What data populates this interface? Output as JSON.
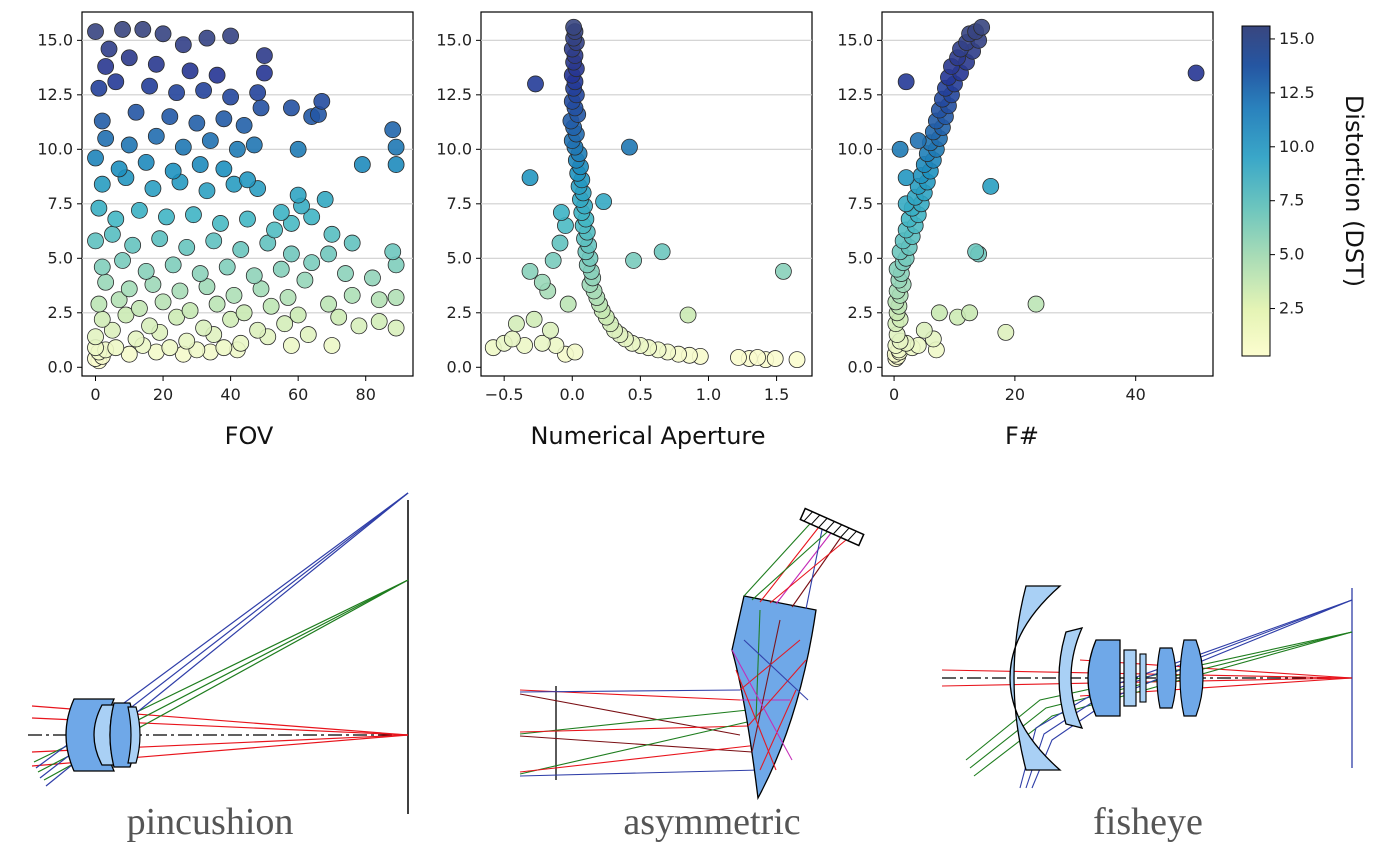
{
  "chart_data": [
    {
      "type": "scatter",
      "xlabel": "FOV",
      "x_ticks": [
        "0",
        "20",
        "40",
        "60",
        "80"
      ],
      "y_ticks": [
        "0.0",
        "2.5",
        "5.0",
        "7.5",
        "10.0",
        "12.5",
        "15.0"
      ],
      "xlim": [
        -4,
        94
      ],
      "ylim": [
        -0.4,
        16.3
      ],
      "grid": "horizontal",
      "color_by": "Distortion (DST)",
      "points": [
        [
          0,
          15.4
        ],
        [
          4,
          14.6
        ],
        [
          8,
          15.5
        ],
        [
          14,
          15.5
        ],
        [
          20,
          15.3
        ],
        [
          26,
          14.8
        ],
        [
          33,
          15.1
        ],
        [
          40,
          15.2
        ],
        [
          50,
          14.3
        ],
        [
          3,
          13.8
        ],
        [
          10,
          14.2
        ],
        [
          18,
          13.9
        ],
        [
          28,
          13.6
        ],
        [
          36,
          13.4
        ],
        [
          50,
          13.5
        ],
        [
          1,
          12.8
        ],
        [
          6,
          13.1
        ],
        [
          16,
          12.9
        ],
        [
          24,
          12.6
        ],
        [
          32,
          12.7
        ],
        [
          40,
          12.4
        ],
        [
          48,
          12.6
        ],
        [
          58,
          11.9
        ],
        [
          64,
          11.5
        ],
        [
          67,
          12.2
        ],
        [
          66,
          11.6
        ],
        [
          49,
          11.9
        ],
        [
          2,
          11.3
        ],
        [
          12,
          11.7
        ],
        [
          22,
          11.5
        ],
        [
          30,
          11.2
        ],
        [
          38,
          11.4
        ],
        [
          44,
          11.1
        ],
        [
          88,
          10.9
        ],
        [
          89,
          10.1
        ],
        [
          47,
          10.2
        ],
        [
          60,
          10.0
        ],
        [
          3,
          10.5
        ],
        [
          10,
          10.2
        ],
        [
          18,
          10.6
        ],
        [
          26,
          10.1
        ],
        [
          34,
          10.4
        ],
        [
          42,
          10.0
        ],
        [
          79,
          9.3
        ],
        [
          89,
          9.3
        ],
        [
          0,
          9.6
        ],
        [
          7,
          9.1
        ],
        [
          15,
          9.4
        ],
        [
          23,
          9.0
        ],
        [
          31,
          9.3
        ],
        [
          38,
          9.1
        ],
        [
          45,
          8.6
        ],
        [
          2,
          8.4
        ],
        [
          9,
          8.7
        ],
        [
          17,
          8.2
        ],
        [
          25,
          8.5
        ],
        [
          33,
          8.1
        ],
        [
          41,
          8.4
        ],
        [
          48,
          8.2
        ],
        [
          60,
          7.9
        ],
        [
          61,
          7.4
        ],
        [
          68,
          7.7
        ],
        [
          55,
          7.1
        ],
        [
          1,
          7.3
        ],
        [
          6,
          6.8
        ],
        [
          13,
          7.2
        ],
        [
          21,
          6.9
        ],
        [
          29,
          7.0
        ],
        [
          37,
          6.6
        ],
        [
          45,
          6.8
        ],
        [
          53,
          6.3
        ],
        [
          58,
          6.6
        ],
        [
          64,
          6.9
        ],
        [
          70,
          6.1
        ],
        [
          76,
          5.7
        ],
        [
          88,
          5.3
        ],
        [
          89,
          4.7
        ],
        [
          0,
          5.8
        ],
        [
          5,
          6.1
        ],
        [
          11,
          5.6
        ],
        [
          19,
          5.9
        ],
        [
          27,
          5.5
        ],
        [
          35,
          5.8
        ],
        [
          43,
          5.4
        ],
        [
          51,
          5.7
        ],
        [
          58,
          5.2
        ],
        [
          64,
          4.8
        ],
        [
          69,
          5.2
        ],
        [
          74,
          4.3
        ],
        [
          82,
          4.1
        ],
        [
          2,
          4.6
        ],
        [
          8,
          4.9
        ],
        [
          15,
          4.4
        ],
        [
          23,
          4.7
        ],
        [
          31,
          4.3
        ],
        [
          39,
          4.6
        ],
        [
          47,
          4.2
        ],
        [
          55,
          4.5
        ],
        [
          62,
          4.0
        ],
        [
          3,
          3.9
        ],
        [
          10,
          3.6
        ],
        [
          17,
          3.8
        ],
        [
          25,
          3.5
        ],
        [
          33,
          3.7
        ],
        [
          41,
          3.3
        ],
        [
          49,
          3.6
        ],
        [
          57,
          3.2
        ],
        [
          69,
          2.9
        ],
        [
          76,
          3.3
        ],
        [
          84,
          3.1
        ],
        [
          89,
          3.2
        ],
        [
          1,
          2.9
        ],
        [
          7,
          3.1
        ],
        [
          13,
          2.7
        ],
        [
          20,
          3.0
        ],
        [
          28,
          2.6
        ],
        [
          36,
          2.9
        ],
        [
          44,
          2.5
        ],
        [
          52,
          2.8
        ],
        [
          60,
          2.4
        ],
        [
          72,
          2.3
        ],
        [
          84,
          2.1
        ],
        [
          2,
          2.2
        ],
        [
          9,
          2.4
        ],
        [
          16,
          1.9
        ],
        [
          24,
          2.3
        ],
        [
          32,
          1.8
        ],
        [
          40,
          2.2
        ],
        [
          48,
          1.7
        ],
        [
          56,
          2.0
        ],
        [
          63,
          1.5
        ],
        [
          78,
          1.9
        ],
        [
          89,
          1.8
        ],
        [
          0,
          1.4
        ],
        [
          5,
          1.7
        ],
        [
          12,
          1.3
        ],
        [
          19,
          1.6
        ],
        [
          27,
          1.2
        ],
        [
          35,
          1.5
        ],
        [
          43,
          1.1
        ],
        [
          51,
          1.4
        ],
        [
          58,
          1.0
        ],
        [
          70,
          1.0
        ],
        [
          0,
          0.9
        ],
        [
          1,
          0.7
        ],
        [
          2,
          0.5
        ],
        [
          0,
          0.4
        ],
        [
          1,
          0.3
        ],
        [
          3,
          0.8
        ],
        [
          6,
          0.9
        ],
        [
          10,
          0.6
        ],
        [
          14,
          1.0
        ],
        [
          18,
          0.7
        ],
        [
          22,
          0.9
        ],
        [
          26,
          0.6
        ],
        [
          30,
          0.8
        ],
        [
          34,
          0.7
        ],
        [
          38,
          0.9
        ],
        [
          42,
          0.8
        ]
      ]
    },
    {
      "type": "scatter",
      "xlabel": "Numerical Aperture",
      "x_ticks": [
        "−0.5",
        "0.0",
        "0.5",
        "1.0",
        "1.5"
      ],
      "y_ticks": [
        "0.0",
        "2.5",
        "5.0",
        "7.5",
        "10.0",
        "12.5",
        "15.0"
      ],
      "xlim": [
        -0.67,
        1.76
      ],
      "ylim": [
        -0.4,
        16.3
      ],
      "grid": "horizontal",
      "color_by": "Distortion (DST)",
      "points": [
        [
          0.01,
          15.6
        ],
        [
          0.02,
          15.4
        ],
        [
          0.01,
          15.1
        ],
        [
          0.03,
          14.9
        ],
        [
          0.0,
          14.6
        ],
        [
          0.02,
          14.3
        ],
        [
          0.01,
          14.0
        ],
        [
          0.03,
          13.7
        ],
        [
          0.0,
          13.4
        ],
        [
          0.02,
          13.1
        ],
        [
          -0.27,
          13.0
        ],
        [
          0.01,
          12.8
        ],
        [
          0.03,
          12.5
        ],
        [
          0.0,
          12.2
        ],
        [
          0.02,
          11.9
        ],
        [
          0.04,
          11.6
        ],
        [
          -0.01,
          11.3
        ],
        [
          0.01,
          11.0
        ],
        [
          0.03,
          10.7
        ],
        [
          0.0,
          10.4
        ],
        [
          0.42,
          10.1
        ],
        [
          0.02,
          10.1
        ],
        [
          0.05,
          9.8
        ],
        [
          0.03,
          9.5
        ],
        [
          0.06,
          9.2
        ],
        [
          -0.31,
          8.7
        ],
        [
          0.04,
          8.9
        ],
        [
          0.07,
          8.6
        ],
        [
          0.05,
          8.3
        ],
        [
          0.08,
          8.0
        ],
        [
          0.06,
          7.7
        ],
        [
          0.09,
          7.4
        ],
        [
          -0.08,
          7.1
        ],
        [
          0.23,
          7.6
        ],
        [
          0.07,
          7.1
        ],
        [
          0.1,
          6.8
        ],
        [
          0.08,
          6.5
        ],
        [
          -0.05,
          6.5
        ],
        [
          0.11,
          6.2
        ],
        [
          0.09,
          5.9
        ],
        [
          0.12,
          5.6
        ],
        [
          -0.09,
          5.7
        ],
        [
          0.66,
          5.3
        ],
        [
          0.45,
          4.9
        ],
        [
          0.1,
          5.3
        ],
        [
          0.13,
          5.0
        ],
        [
          0.11,
          4.7
        ],
        [
          0.14,
          4.4
        ],
        [
          -0.31,
          4.4
        ],
        [
          -0.14,
          4.9
        ],
        [
          1.55,
          4.4
        ],
        [
          0.15,
          4.1
        ],
        [
          0.13,
          3.8
        ],
        [
          0.16,
          3.5
        ],
        [
          -0.22,
          3.9
        ],
        [
          -0.18,
          3.5
        ],
        [
          0.18,
          3.2
        ],
        [
          0.2,
          2.9
        ],
        [
          0.22,
          2.6
        ],
        [
          0.25,
          2.3
        ],
        [
          -0.03,
          2.9
        ],
        [
          -0.41,
          2.0
        ],
        [
          -0.28,
          2.2
        ],
        [
          -0.16,
          1.7
        ],
        [
          0.28,
          2.0
        ],
        [
          0.31,
          1.7
        ],
        [
          0.35,
          1.5
        ],
        [
          0.39,
          1.3
        ],
        [
          0.44,
          1.1
        ],
        [
          0.5,
          1.0
        ],
        [
          0.56,
          0.9
        ],
        [
          0.63,
          0.8
        ],
        [
          0.7,
          0.7
        ],
        [
          0.78,
          0.6
        ],
        [
          0.86,
          0.55
        ],
        [
          0.94,
          0.5
        ],
        [
          0.85,
          2.4
        ],
        [
          -0.58,
          0.9
        ],
        [
          -0.5,
          1.1
        ],
        [
          -0.44,
          1.3
        ],
        [
          -0.35,
          1.0
        ],
        [
          -0.22,
          1.1
        ],
        [
          -0.12,
          1.0
        ],
        [
          0.02,
          0.7
        ],
        [
          1.22,
          0.45
        ],
        [
          1.3,
          0.4
        ],
        [
          1.36,
          0.45
        ],
        [
          1.42,
          0.35
        ],
        [
          1.49,
          0.4
        ],
        [
          1.65,
          0.35
        ],
        [
          -0.05,
          0.6
        ]
      ]
    },
    {
      "type": "scatter",
      "xlabel": "F#",
      "x_ticks": [
        "0",
        "20",
        "40"
      ],
      "y_ticks": [
        "0.0",
        "2.5",
        "5.0",
        "7.5",
        "10.0",
        "12.5",
        "15.0"
      ],
      "xlim": [
        -2,
        52.8
      ],
      "ylim": [
        -0.4,
        16.3
      ],
      "grid": "horizontal",
      "color_by": "Distortion (DST)",
      "points": [
        [
          14.5,
          15.6
        ],
        [
          13.5,
          15.4
        ],
        [
          12.5,
          15.3
        ],
        [
          14,
          15.0
        ],
        [
          12,
          14.9
        ],
        [
          11,
          14.6
        ],
        [
          13,
          14.5
        ],
        [
          10.5,
          14.2
        ],
        [
          12,
          14.0
        ],
        [
          9.5,
          13.8
        ],
        [
          11,
          13.5
        ],
        [
          9,
          13.3
        ],
        [
          10,
          13.0
        ],
        [
          2,
          13.1
        ],
        [
          50,
          13.5
        ],
        [
          8.5,
          12.8
        ],
        [
          9.5,
          12.5
        ],
        [
          8,
          12.3
        ],
        [
          9,
          12.0
        ],
        [
          7.5,
          11.8
        ],
        [
          8.5,
          11.5
        ],
        [
          7,
          11.3
        ],
        [
          8,
          11.0
        ],
        [
          6.5,
          10.8
        ],
        [
          7.5,
          10.5
        ],
        [
          6,
          10.3
        ],
        [
          7,
          10.0
        ],
        [
          1,
          10.0
        ],
        [
          4,
          10.4
        ],
        [
          5.5,
          9.8
        ],
        [
          6.5,
          9.5
        ],
        [
          5,
          9.3
        ],
        [
          6,
          9.0
        ],
        [
          2,
          8.7
        ],
        [
          4.5,
          8.8
        ],
        [
          5.5,
          8.5
        ],
        [
          4,
          8.3
        ],
        [
          16,
          8.3
        ],
        [
          5,
          8.0
        ],
        [
          3.5,
          7.8
        ],
        [
          4.5,
          7.5
        ],
        [
          2,
          7.5
        ],
        [
          3,
          7.3
        ],
        [
          4,
          7.0
        ],
        [
          2.5,
          6.8
        ],
        [
          3.5,
          6.5
        ],
        [
          2,
          6.3
        ],
        [
          3,
          6.0
        ],
        [
          1.5,
          5.8
        ],
        [
          2.5,
          5.5
        ],
        [
          1,
          5.3
        ],
        [
          13.5,
          5.3
        ],
        [
          14,
          5.2
        ],
        [
          2,
          5.0
        ],
        [
          1.5,
          4.8
        ],
        [
          0.5,
          4.5
        ],
        [
          1.2,
          4.3
        ],
        [
          0.8,
          4.0
        ],
        [
          1.5,
          3.8
        ],
        [
          0.5,
          3.5
        ],
        [
          1,
          3.3
        ],
        [
          0.3,
          3.0
        ],
        [
          0.8,
          2.8
        ],
        [
          23.5,
          2.9
        ],
        [
          7.5,
          2.5
        ],
        [
          12.5,
          2.5
        ],
        [
          10.5,
          2.3
        ],
        [
          0.5,
          2.5
        ],
        [
          1,
          2.2
        ],
        [
          0.3,
          2.0
        ],
        [
          18.5,
          1.6
        ],
        [
          5,
          1.7
        ],
        [
          6.5,
          1.3
        ],
        [
          0.5,
          1.5
        ],
        [
          1,
          1.2
        ],
        [
          4,
          1.0
        ],
        [
          7,
          0.8
        ],
        [
          0.3,
          1.0
        ],
        [
          0.8,
          0.8
        ],
        [
          0.2,
          0.6
        ],
        [
          0.6,
          0.5
        ],
        [
          0.3,
          0.4
        ],
        [
          0.9,
          0.7
        ],
        [
          3,
          0.9
        ],
        [
          2,
          1.1
        ]
      ]
    }
  ],
  "colorbar": {
    "label": "Distortion (DST)",
    "ticks": [
      "2.5",
      "5.0",
      "7.5",
      "10.0",
      "12.5",
      "15.0"
    ],
    "range": [
      0.3,
      15.6
    ],
    "colors": [
      "#fcfdcf",
      "#c9e9b3",
      "#7fcdbb",
      "#41b6c4",
      "#1d91c0",
      "#225ea8",
      "#253494",
      "#39467f"
    ]
  },
  "captions": {
    "left": "pincushion",
    "middle": "asymmetric",
    "right": "fisheye"
  },
  "lens_colors": {
    "ray_red": "#e8141c",
    "ray_green": "#1e7d1e",
    "ray_blue": "#2f3ea8",
    "ray_magenta": "#c42bb8",
    "ray_maroon": "#7a0f14",
    "glass_light": "#a9d0f5",
    "glass_mid": "#6fa8e8"
  }
}
